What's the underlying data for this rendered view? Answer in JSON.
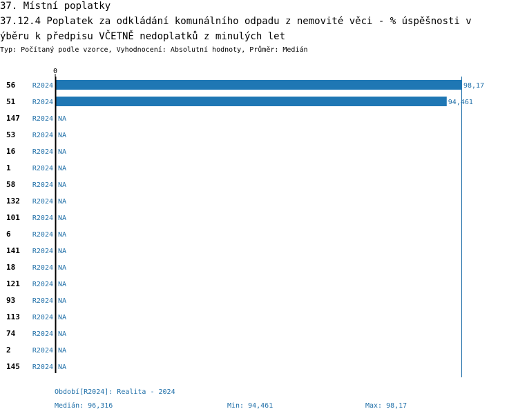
{
  "header": {
    "title": "37. Místní poplatky",
    "subtitle_line1": "37.12.4 Poplatek za odkládání komunálního odpadu z nemovité věci - % úspěšnosti v",
    "subtitle_line2": "ýběru k předpisu VČETNĚ nedoplatků z minulých let",
    "meta": "Typ: Počítaný podle vzorce, Vyhodnocení: Absolutní hodnoty, Průměr: Medián"
  },
  "chart_data": {
    "type": "bar",
    "orientation": "horizontal",
    "x_tick_labels": [
      "0"
    ],
    "xlim": [
      0,
      98.17
    ],
    "bar_color": "#1f77b4",
    "reference_line": {
      "label": "Max",
      "value": 98.17
    },
    "rows": [
      {
        "id": "56",
        "period": "R2024",
        "value": 98.17,
        "label": "98,17"
      },
      {
        "id": "51",
        "period": "R2024",
        "value": 94.461,
        "label": "94,461"
      },
      {
        "id": "147",
        "period": "R2024",
        "value": null,
        "label": "NA"
      },
      {
        "id": "53",
        "period": "R2024",
        "value": null,
        "label": "NA"
      },
      {
        "id": "16",
        "period": "R2024",
        "value": null,
        "label": "NA"
      },
      {
        "id": "1",
        "period": "R2024",
        "value": null,
        "label": "NA"
      },
      {
        "id": "58",
        "period": "R2024",
        "value": null,
        "label": "NA"
      },
      {
        "id": "132",
        "period": "R2024",
        "value": null,
        "label": "NA"
      },
      {
        "id": "101",
        "period": "R2024",
        "value": null,
        "label": "NA"
      },
      {
        "id": "6",
        "period": "R2024",
        "value": null,
        "label": "NA"
      },
      {
        "id": "141",
        "period": "R2024",
        "value": null,
        "label": "NA"
      },
      {
        "id": "18",
        "period": "R2024",
        "value": null,
        "label": "NA"
      },
      {
        "id": "121",
        "period": "R2024",
        "value": null,
        "label": "NA"
      },
      {
        "id": "93",
        "period": "R2024",
        "value": null,
        "label": "NA"
      },
      {
        "id": "113",
        "period": "R2024",
        "value": null,
        "label": "NA"
      },
      {
        "id": "74",
        "period": "R2024",
        "value": null,
        "label": "NA"
      },
      {
        "id": "2",
        "period": "R2024",
        "value": null,
        "label": "NA"
      },
      {
        "id": "145",
        "period": "R2024",
        "value": null,
        "label": "NA"
      }
    ]
  },
  "footer": {
    "period_note": "Období[R2024]: Realita - 2024",
    "median": "Medián: 96,316",
    "min": "Min: 94,461",
    "max": "Max: 98,17"
  }
}
